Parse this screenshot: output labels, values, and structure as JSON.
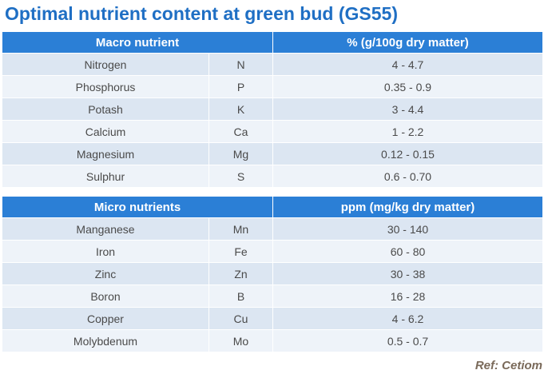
{
  "title": "Optimal nutrient content at green bud (GS55)",
  "tables": [
    {
      "header": [
        "Macro nutrient",
        "% (g/100g dry matter)"
      ],
      "rows": [
        [
          "Nitrogen",
          "N",
          "4 - 4.7"
        ],
        [
          "Phosphorus",
          "P",
          "0.35 - 0.9"
        ],
        [
          "Potash",
          "K",
          "3 - 4.4"
        ],
        [
          "Calcium",
          "Ca",
          "1 - 2.2"
        ],
        [
          "Magnesium",
          "Mg",
          "0.12 - 0.15"
        ],
        [
          "Sulphur",
          "S",
          "0.6 - 0.70"
        ]
      ]
    },
    {
      "header": [
        "Micro nutrients",
        "ppm (mg/kg dry matter)"
      ],
      "rows": [
        [
          "Manganese",
          "Mn",
          "30 - 140"
        ],
        [
          "Iron",
          "Fe",
          "60 - 80"
        ],
        [
          "Zinc",
          "Zn",
          "30 - 38"
        ],
        [
          "Boron",
          "B",
          "16 - 28"
        ],
        [
          "Copper",
          "Cu",
          "4 - 6.2"
        ],
        [
          "Molybdenum",
          "Mo",
          "0.5 - 0.7"
        ]
      ]
    }
  ],
  "ref": "Ref: Cetiom"
}
